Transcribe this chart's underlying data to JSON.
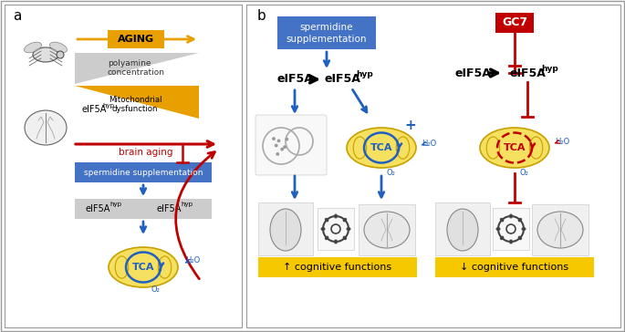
{
  "bg_color": "#ffffff",
  "border_color": "#999999",
  "blue_box_color": "#4472c4",
  "red_box_color": "#c00000",
  "orange_color": "#e8a000",
  "gold_fill": "#f5c800",
  "gray_light": "#d0d0d0",
  "gray_med": "#b0b0b0",
  "mito_yellow": "#f5e060",
  "mito_border": "#c8a000",
  "tca_blue": "#2060c0",
  "tca_red": "#c00000",
  "arrow_blue": "#2060c0",
  "arrow_red": "#c00000",
  "arrow_orange": "#e8a000",
  "text_red": "#c00000",
  "label_a": "a",
  "label_b": "b",
  "cognitive_up": "↑ cognitive functions",
  "cognitive_down": "↓ cognitive functions",
  "white": "#ffffff",
  "black": "#000000"
}
